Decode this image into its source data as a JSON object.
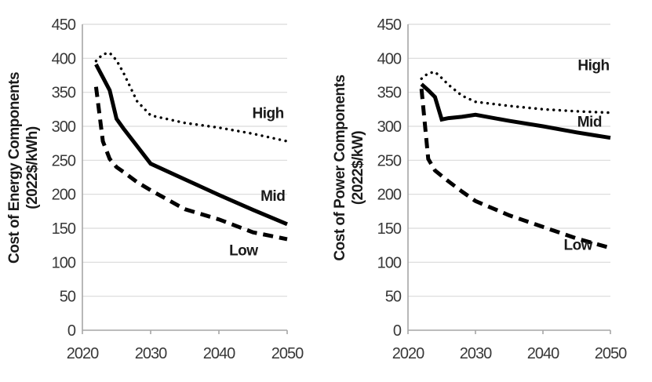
{
  "style": {
    "background": "#ffffff",
    "series_color": "#000000",
    "grid_color": "#d9d9d9",
    "axis_color": "#a6a6a6",
    "tick_text_color": "#383838",
    "label_text_color": "#1a1a1a"
  },
  "chart_data": [
    {
      "type": "line",
      "title": "",
      "xlabel": "",
      "ylabel": "Cost of Energy Components (2022$/kWh)",
      "ylabel_lines": [
        "Cost of Energy Components",
        "(2022$/kWh)"
      ],
      "x": [
        2022,
        2023,
        2024,
        2025,
        2026,
        2028,
        2030,
        2035,
        2040,
        2045,
        2050
      ],
      "series": [
        {
          "name": "High",
          "style": "dotted",
          "values": [
            396,
            406,
            408,
            397,
            379,
            337,
            316,
            305,
            298,
            289,
            278
          ],
          "label_at": {
            "x": 2047.2,
            "y": 320
          }
        },
        {
          "name": "Mid",
          "style": "solid",
          "values": [
            391,
            372,
            353,
            311,
            297,
            271,
            245,
            222,
            199,
            177,
            156
          ],
          "label_at": {
            "x": 2047.9,
            "y": 198
          }
        },
        {
          "name": "Low",
          "style": "dashed",
          "values": [
            358,
            278,
            252,
            240,
            233,
            218,
            206,
            178,
            163,
            144,
            134
          ],
          "label_at": {
            "x": 2043.6,
            "y": 118
          }
        }
      ],
      "xlim": [
        2020,
        2050
      ],
      "ylim": [
        0,
        450
      ],
      "xticks": [
        2020,
        2030,
        2040,
        2050
      ],
      "yticks": [
        0,
        50,
        100,
        150,
        200,
        250,
        300,
        350,
        400,
        450
      ],
      "grid": "horizontal",
      "legend": "inline-labels"
    },
    {
      "type": "line",
      "title": "",
      "xlabel": "",
      "ylabel": "Cost of Power Components (2022$/kW)",
      "ylabel_lines": [
        "Cost of Power Components",
        "(2022$/kW)"
      ],
      "x": [
        2022,
        2023,
        2024,
        2025,
        2026,
        2028,
        2030,
        2035,
        2040,
        2045,
        2050
      ],
      "series": [
        {
          "name": "High",
          "style": "dotted",
          "values": [
            370,
            378,
            380,
            371,
            361,
            345,
            336,
            330,
            325,
            322,
            320
          ],
          "label_at": {
            "x": 2047.5,
            "y": 390
          }
        },
        {
          "name": "Mid",
          "style": "solid",
          "values": [
            362,
            353,
            343,
            310,
            312,
            314,
            317,
            308,
            300,
            291,
            283
          ],
          "label_at": {
            "x": 2046.9,
            "y": 307
          }
        },
        {
          "name": "Low",
          "style": "dashed",
          "values": [
            355,
            252,
            235,
            227,
            219,
            204,
            190,
            169,
            152,
            135,
            121
          ],
          "label_at": {
            "x": 2045.2,
            "y": 126
          }
        }
      ],
      "xlim": [
        2020,
        2050
      ],
      "ylim": [
        0,
        450
      ],
      "xticks": [
        2020,
        2030,
        2040,
        2050
      ],
      "yticks": [
        0,
        50,
        100,
        150,
        200,
        250,
        300,
        350,
        400,
        450
      ],
      "grid": "horizontal",
      "legend": "inline-labels"
    }
  ]
}
